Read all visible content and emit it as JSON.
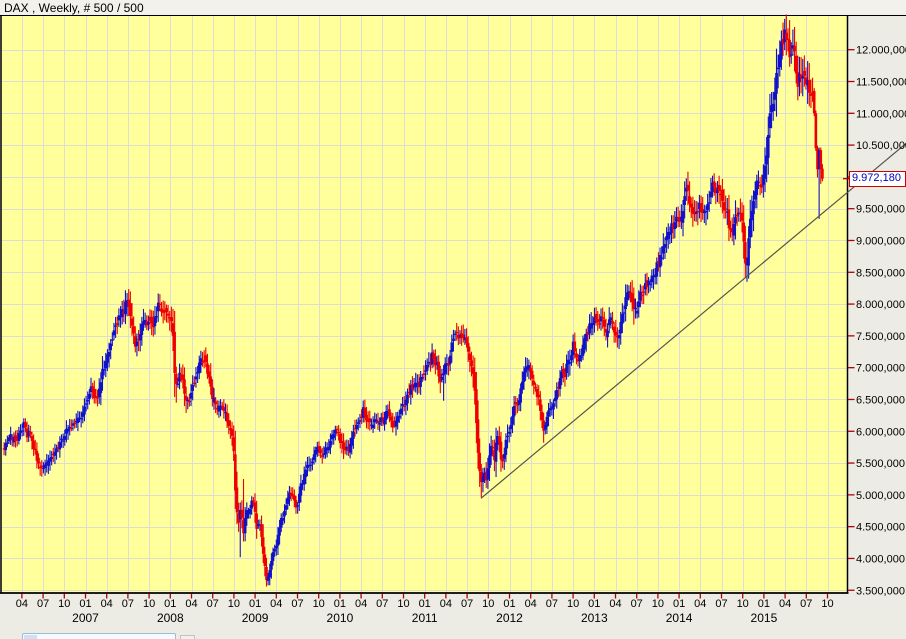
{
  "window": {
    "title": "DAX , Weekly, # 500 / 500"
  },
  "price_tag": {
    "value": "9.972,180"
  },
  "colors": {
    "plot_bg": "#FFFF9C",
    "grid": "#DDDDD4",
    "axis_bg": "#EDECE4",
    "tick": "#B40000",
    "up": "#1111CC",
    "down": "#EE0000",
    "trendline": "#55524A",
    "tag_border": "#CC0000",
    "tag_text": "#0000BB",
    "label_text": "#000000"
  },
  "y_axis": {
    "labels": [
      {
        "price": 12000,
        "label": "12.000,000"
      },
      {
        "price": 11500,
        "label": "11.500,000"
      },
      {
        "price": 11000,
        "label": "11.000,000"
      },
      {
        "price": 10500,
        "label": "10.500,000"
      },
      {
        "price": 10000,
        "label": "10.000,000"
      },
      {
        "price": 9500,
        "label": "9.500,000"
      },
      {
        "price": 9000,
        "label": "9.000,000"
      },
      {
        "price": 8500,
        "label": "8.500,000"
      },
      {
        "price": 8000,
        "label": "8.000,000"
      },
      {
        "price": 7500,
        "label": "7.500,000"
      },
      {
        "price": 7000,
        "label": "7.000,000"
      },
      {
        "price": 6500,
        "label": "6.500,000"
      },
      {
        "price": 6000,
        "label": "6.000,000"
      },
      {
        "price": 5500,
        "label": "5.500,000"
      },
      {
        "price": 5000,
        "label": "5.000,000"
      },
      {
        "price": 4500,
        "label": "4.500,000"
      },
      {
        "price": 4000,
        "label": "4.000,000"
      },
      {
        "price": 3500,
        "label": "3.500,000"
      }
    ]
  },
  "x_axis": {
    "quarter_ticks": [
      {
        "t": 2006.25,
        "label": "04"
      },
      {
        "t": 2006.5,
        "label": "07"
      },
      {
        "t": 2006.75,
        "label": "10"
      },
      {
        "t": 2007.0,
        "label": "01"
      },
      {
        "t": 2007.25,
        "label": "04"
      },
      {
        "t": 2007.5,
        "label": "07"
      },
      {
        "t": 2007.75,
        "label": "10"
      },
      {
        "t": 2008.0,
        "label": "01"
      },
      {
        "t": 2008.25,
        "label": "04"
      },
      {
        "t": 2008.5,
        "label": "07"
      },
      {
        "t": 2008.75,
        "label": "10"
      },
      {
        "t": 2009.0,
        "label": "01"
      },
      {
        "t": 2009.25,
        "label": "04"
      },
      {
        "t": 2009.5,
        "label": "07"
      },
      {
        "t": 2009.75,
        "label": "10"
      },
      {
        "t": 2010.0,
        "label": "01"
      },
      {
        "t": 2010.25,
        "label": "04"
      },
      {
        "t": 2010.5,
        "label": "07"
      },
      {
        "t": 2010.75,
        "label": "10"
      },
      {
        "t": 2011.0,
        "label": "01"
      },
      {
        "t": 2011.25,
        "label": "04"
      },
      {
        "t": 2011.5,
        "label": "07"
      },
      {
        "t": 2011.75,
        "label": "10"
      },
      {
        "t": 2012.0,
        "label": "01"
      },
      {
        "t": 2012.25,
        "label": "04"
      },
      {
        "t": 2012.5,
        "label": "07"
      },
      {
        "t": 2012.75,
        "label": "10"
      },
      {
        "t": 2013.0,
        "label": "01"
      },
      {
        "t": 2013.25,
        "label": "04"
      },
      {
        "t": 2013.5,
        "label": "07"
      },
      {
        "t": 2013.75,
        "label": "10"
      },
      {
        "t": 2014.0,
        "label": "01"
      },
      {
        "t": 2014.25,
        "label": "04"
      },
      {
        "t": 2014.5,
        "label": "07"
      },
      {
        "t": 2014.75,
        "label": "10"
      },
      {
        "t": 2015.0,
        "label": "01"
      },
      {
        "t": 2015.25,
        "label": "04"
      },
      {
        "t": 2015.5,
        "label": "07"
      },
      {
        "t": 2015.75,
        "label": "10"
      }
    ],
    "year_labels": [
      {
        "t": 2007.0,
        "label": "2007"
      },
      {
        "t": 2008.0,
        "label": "2008"
      },
      {
        "t": 2009.0,
        "label": "2009"
      },
      {
        "t": 2010.0,
        "label": "2010"
      },
      {
        "t": 2011.0,
        "label": "2011"
      },
      {
        "t": 2012.0,
        "label": "2012"
      },
      {
        "t": 2013.0,
        "label": "2013"
      },
      {
        "t": 2014.0,
        "label": "2014"
      },
      {
        "t": 2015.0,
        "label": "2015"
      }
    ]
  },
  "chart_data": {
    "type": "candlestick",
    "instrument": "DAX",
    "timeframe": "Weekly",
    "candle_count": 500,
    "last_price": 9972.18,
    "price_axis": {
      "min": 3500,
      "max": 12000,
      "step": 500
    },
    "time_range": [
      2006.04,
      2015.69
    ],
    "anchors": [
      [
        2006.04,
        5750
      ],
      [
        2006.17,
        5850
      ],
      [
        2006.3,
        6060
      ],
      [
        2006.38,
        5900
      ],
      [
        2006.51,
        5350
      ],
      [
        2006.6,
        5680
      ],
      [
        2006.72,
        5900
      ],
      [
        2006.83,
        6150
      ],
      [
        2006.95,
        6350
      ],
      [
        2007.02,
        6500
      ],
      [
        2007.1,
        6750
      ],
      [
        2007.16,
        6500
      ],
      [
        2007.22,
        6900
      ],
      [
        2007.3,
        7200
      ],
      [
        2007.38,
        7450
      ],
      [
        2007.46,
        7900
      ],
      [
        2007.52,
        8060
      ],
      [
        2007.57,
        7550
      ],
      [
        2007.61,
        7350
      ],
      [
        2007.66,
        7600
      ],
      [
        2007.72,
        7850
      ],
      [
        2007.77,
        7950
      ],
      [
        2007.82,
        7750
      ],
      [
        2007.87,
        7900
      ],
      [
        2007.93,
        8000
      ],
      [
        2008.0,
        8050
      ],
      [
        2008.045,
        7720
      ],
      [
        2008.075,
        6850
      ],
      [
        2008.12,
        6900
      ],
      [
        2008.16,
        6950
      ],
      [
        2008.21,
        6550
      ],
      [
        2008.26,
        6650
      ],
      [
        2008.32,
        6800
      ],
      [
        2008.37,
        7000
      ],
      [
        2008.42,
        7100
      ],
      [
        2008.47,
        6900
      ],
      [
        2008.52,
        6500
      ],
      [
        2008.57,
        6350
      ],
      [
        2008.62,
        6450
      ],
      [
        2008.67,
        6250
      ],
      [
        2008.72,
        6050
      ],
      [
        2008.76,
        5850
      ],
      [
        2008.79,
        5000
      ],
      [
        2008.82,
        4550
      ],
      [
        2008.85,
        4800
      ],
      [
        2008.88,
        4350
      ],
      [
        2008.91,
        4650
      ],
      [
        2008.95,
        4750
      ],
      [
        2009.0,
        4850
      ],
      [
        2009.04,
        4400
      ],
      [
        2009.08,
        4550
      ],
      [
        2009.12,
        4050
      ],
      [
        2009.16,
        3700
      ],
      [
        2009.21,
        4050
      ],
      [
        2009.26,
        4250
      ],
      [
        2009.31,
        4600
      ],
      [
        2009.36,
        4750
      ],
      [
        2009.41,
        4950
      ],
      [
        2009.46,
        5050
      ],
      [
        2009.51,
        4850
      ],
      [
        2009.56,
        5250
      ],
      [
        2009.62,
        5400
      ],
      [
        2009.67,
        5550
      ],
      [
        2009.72,
        5700
      ],
      [
        2009.77,
        5750
      ],
      [
        2009.82,
        5650
      ],
      [
        2009.87,
        5780
      ],
      [
        2009.92,
        5850
      ],
      [
        2009.97,
        5950
      ],
      [
        2010.02,
        5850
      ],
      [
        2010.07,
        5600
      ],
      [
        2010.12,
        5550
      ],
      [
        2010.17,
        5750
      ],
      [
        2010.22,
        5950
      ],
      [
        2010.27,
        6150
      ],
      [
        2010.31,
        6250
      ],
      [
        2010.35,
        6050
      ],
      [
        2010.4,
        5950
      ],
      [
        2010.44,
        6100
      ],
      [
        2010.48,
        5950
      ],
      [
        2010.53,
        6050
      ],
      [
        2010.58,
        6150
      ],
      [
        2010.63,
        6000
      ],
      [
        2010.68,
        6100
      ],
      [
        2010.73,
        6250
      ],
      [
        2010.78,
        6400
      ],
      [
        2010.83,
        6600
      ],
      [
        2010.88,
        6750
      ],
      [
        2010.93,
        6900
      ],
      [
        2011.0,
        6950
      ],
      [
        2011.06,
        7100
      ],
      [
        2011.12,
        7250
      ],
      [
        2011.17,
        7100
      ],
      [
        2011.21,
        6850
      ],
      [
        2011.26,
        7050
      ],
      [
        2011.31,
        7250
      ],
      [
        2011.36,
        7500
      ],
      [
        2011.42,
        7400
      ],
      [
        2011.47,
        7280
      ],
      [
        2011.52,
        7350
      ],
      [
        2011.56,
        7150
      ],
      [
        2011.6,
        6800
      ],
      [
        2011.63,
        6100
      ],
      [
        2011.66,
        5450
      ],
      [
        2011.69,
        5200
      ],
      [
        2011.72,
        5500
      ],
      [
        2011.75,
        5250
      ],
      [
        2011.78,
        5650
      ],
      [
        2011.81,
        5950
      ],
      [
        2011.84,
        5550
      ],
      [
        2011.87,
        6050
      ],
      [
        2011.9,
        5850
      ],
      [
        2011.93,
        5550
      ],
      [
        2011.96,
        5750
      ],
      [
        2012.0,
        6050
      ],
      [
        2012.05,
        6250
      ],
      [
        2012.1,
        6500
      ],
      [
        2012.15,
        6700
      ],
      [
        2012.2,
        6850
      ],
      [
        2012.25,
        7000
      ],
      [
        2012.29,
        6800
      ],
      [
        2012.34,
        6650
      ],
      [
        2012.39,
        6400
      ],
      [
        2012.43,
        6100
      ],
      [
        2012.48,
        6300
      ],
      [
        2012.53,
        6450
      ],
      [
        2012.58,
        6650
      ],
      [
        2012.63,
        6900
      ],
      [
        2012.68,
        7000
      ],
      [
        2012.73,
        7300
      ],
      [
        2012.77,
        7450
      ],
      [
        2012.81,
        7300
      ],
      [
        2012.86,
        7250
      ],
      [
        2012.91,
        7350
      ],
      [
        2012.96,
        7550
      ],
      [
        2013.01,
        7700
      ],
      [
        2013.06,
        7780
      ],
      [
        2013.11,
        7850
      ],
      [
        2013.16,
        7650
      ],
      [
        2013.21,
        7900
      ],
      [
        2013.26,
        7750
      ],
      [
        2013.3,
        7550
      ],
      [
        2013.35,
        7900
      ],
      [
        2013.4,
        8250
      ],
      [
        2013.44,
        8350
      ],
      [
        2013.49,
        7850
      ],
      [
        2013.53,
        7900
      ],
      [
        2013.58,
        8150
      ],
      [
        2013.63,
        8300
      ],
      [
        2013.68,
        8350
      ],
      [
        2013.73,
        8550
      ],
      [
        2013.78,
        8700
      ],
      [
        2013.83,
        8900
      ],
      [
        2013.88,
        9050
      ],
      [
        2013.93,
        9200
      ],
      [
        2014.0,
        9450
      ],
      [
        2014.05,
        9300
      ],
      [
        2014.1,
        9650
      ],
      [
        2014.15,
        9250
      ],
      [
        2014.2,
        9350
      ],
      [
        2014.26,
        9550
      ],
      [
        2014.32,
        9650
      ],
      [
        2014.38,
        9800
      ],
      [
        2014.44,
        9950
      ],
      [
        2014.5,
        9850
      ],
      [
        2014.55,
        9650
      ],
      [
        2014.6,
        9250
      ],
      [
        2014.64,
        9100
      ],
      [
        2014.69,
        9550
      ],
      [
        2014.73,
        9650
      ],
      [
        2014.77,
        9200
      ],
      [
        2014.81,
        8700
      ],
      [
        2014.86,
        9300
      ],
      [
        2014.9,
        9750
      ],
      [
        2014.95,
        9900
      ],
      [
        2015.0,
        9800
      ],
      [
        2015.04,
        10250
      ],
      [
        2015.08,
        10700
      ],
      [
        2015.12,
        11000
      ],
      [
        2015.15,
        11300
      ],
      [
        2015.18,
        11800
      ],
      [
        2015.21,
        12050
      ],
      [
        2015.245,
        12250
      ],
      [
        2015.27,
        12300
      ],
      [
        2015.3,
        12050
      ],
      [
        2015.33,
        11800
      ],
      [
        2015.36,
        11950
      ],
      [
        2015.39,
        11650
      ],
      [
        2015.42,
        11500
      ],
      [
        2015.455,
        11750
      ],
      [
        2015.48,
        11600
      ],
      [
        2015.51,
        11450
      ],
      [
        2015.535,
        11700
      ],
      [
        2015.56,
        11350
      ],
      [
        2015.58,
        11500
      ],
      [
        2015.6,
        11300
      ],
      [
        2015.69,
        9972
      ]
    ],
    "key_extremes": [
      {
        "t": 2007.52,
        "high": 8150
      },
      {
        "t": 2007.6,
        "low": 7250
      },
      {
        "t": 2008.075,
        "low": 6450
      },
      {
        "t": 2008.82,
        "low": 4020
      },
      {
        "t": 2008.87,
        "high": 5250
      },
      {
        "t": 2009.16,
        "low": 3590
      },
      {
        "t": 2011.22,
        "low": 6480
      },
      {
        "t": 2011.66,
        "low": 4960
      },
      {
        "t": 2012.43,
        "low": 5950
      },
      {
        "t": 2013.47,
        "low": 7690
      },
      {
        "t": 2014.81,
        "low": 8350
      },
      {
        "t": 2015.26,
        "high": 12430
      }
    ],
    "final_candles": [
      {
        "t": 2015.592,
        "o": 11350,
        "c": 11000
      },
      {
        "t": 2015.611,
        "o": 11000,
        "c": 10450
      },
      {
        "t": 2015.63,
        "o": 10450,
        "c": 10120,
        "lo": 9990
      },
      {
        "t": 2015.65,
        "o": 10120,
        "c": 10420,
        "lo": 9340
      },
      {
        "t": 2015.669,
        "o": 10420,
        "c": 10120,
        "lo": 9890
      },
      {
        "t": 2015.69,
        "o": 10130,
        "c": 9972.18,
        "hi": 10200,
        "lo": 9930
      }
    ],
    "trendline": {
      "t1": 2011.664,
      "p1": 4946,
      "t2": 2016.69,
      "p2": 10541
    }
  }
}
